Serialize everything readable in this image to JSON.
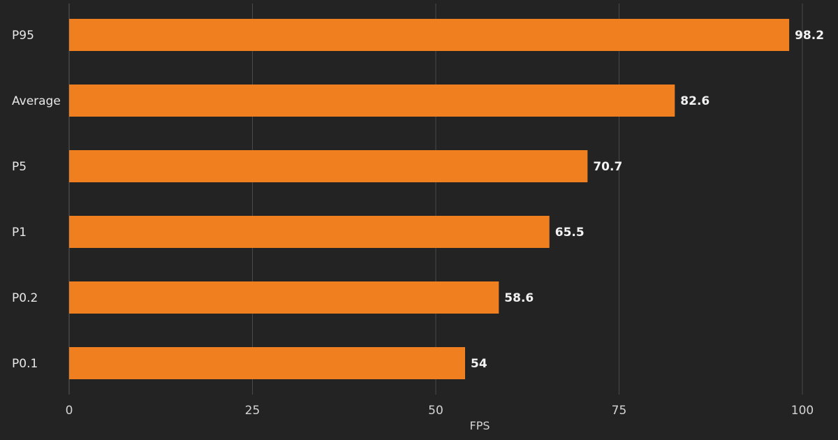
{
  "chart_data": {
    "type": "bar",
    "orientation": "horizontal",
    "categories": [
      "P95",
      "Average",
      "P5",
      "P1",
      "P0.2",
      "P0.1"
    ],
    "values": [
      98.2,
      82.6,
      70.7,
      65.5,
      58.6,
      54
    ],
    "value_labels": [
      "98.2",
      "82.6",
      "70.7",
      "65.5",
      "58.6",
      "54"
    ],
    "title": "",
    "xlabel": "FPS",
    "ylabel": "",
    "xlim": [
      0,
      100
    ],
    "xticks": [
      0,
      25,
      50,
      75,
      100
    ],
    "xtick_labels": [
      "0",
      "25",
      "50",
      "75",
      "100"
    ],
    "grid": true,
    "legend": "none"
  },
  "colors": {
    "background": "#232323",
    "bar": "#f07f20",
    "grid": "#4a4a4a",
    "text": "#e8e8e8"
  }
}
